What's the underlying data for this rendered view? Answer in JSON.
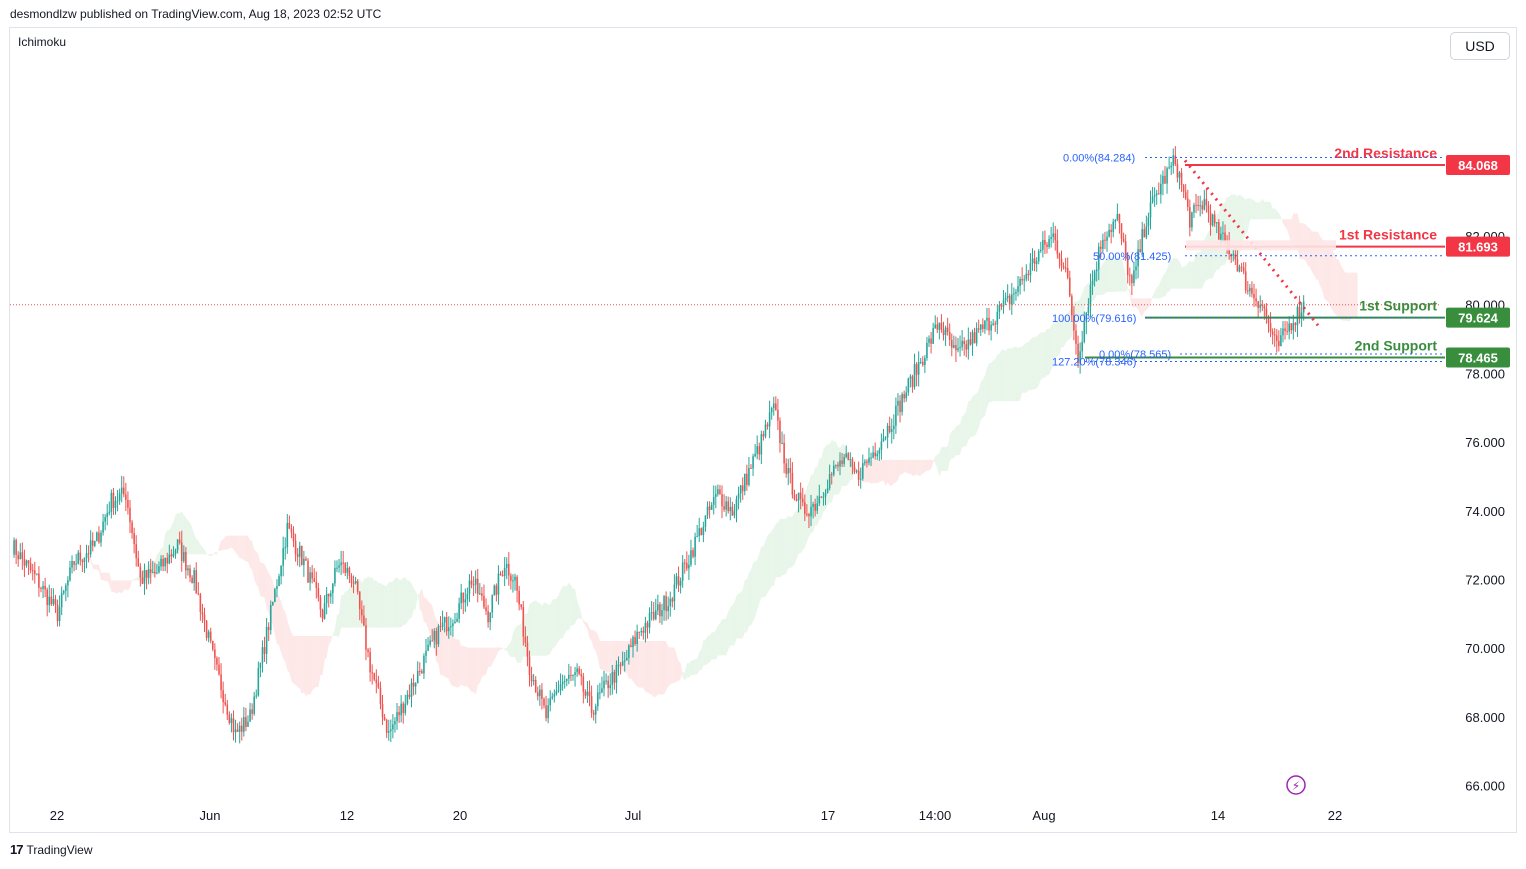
{
  "header": {
    "published": "desmondlzw published on TradingView.com, Aug 18, 2023 02:52 UTC"
  },
  "indicator": {
    "name": "Ichimoku"
  },
  "currency": {
    "label": "USD"
  },
  "footer": {
    "brand": "TradingView",
    "logo_icon": "tradingview-logo-icon"
  },
  "colors": {
    "up": "#26a69a",
    "down": "#ef5350",
    "resistance": "#f23645",
    "support": "#388e3c",
    "cloud_green": "#e8f5e9",
    "cloud_red": "#fde7e7",
    "fib": "#2962ff",
    "grid_text": "#131722"
  },
  "chart_data": {
    "type": "candlestick",
    "title": "",
    "xlabel": "",
    "ylabel": "",
    "ylim": [
      65.0,
      86.6
    ],
    "y_ticks": [
      "66.000",
      "68.000",
      "70.000",
      "72.000",
      "74.000",
      "76.000",
      "78.000",
      "80.000",
      "82.000"
    ],
    "x_ticks": [
      "22",
      "Jun",
      "12",
      "20",
      "Jul",
      "17",
      "14:00",
      "Aug",
      "14",
      "22"
    ],
    "levels": [
      {
        "name": "2nd Resistance",
        "value": 84.068,
        "label": "84.068",
        "kind": "resistance"
      },
      {
        "name": "1st Resistance",
        "value": 81.693,
        "label": "81.693",
        "kind": "resistance"
      },
      {
        "name": "1st Support",
        "value": 79.624,
        "label": "79.624",
        "kind": "support"
      },
      {
        "name": "2nd Support",
        "value": 78.465,
        "label": "78.465",
        "kind": "support"
      }
    ],
    "fib_labels": [
      {
        "text": "0.00%(84.284)",
        "value": 84.284
      },
      {
        "text": "50.00%(81.425)",
        "value": 81.425
      },
      {
        "text": "100.00%(79.616)",
        "value": 79.616
      },
      {
        "text": "0.00%(78.565)",
        "value": 78.565
      },
      {
        "text": "127.20%(78.346)",
        "value": 78.346
      }
    ],
    "current_price": 80.0,
    "series": [
      {
        "name": "",
        "keypoints": [
          [
            0,
            73.0
          ],
          [
            12,
            72.0
          ],
          [
            22,
            71.0
          ],
          [
            30,
            72.5
          ],
          [
            40,
            73.0
          ],
          [
            48,
            74.3
          ],
          [
            55,
            74.5
          ],
          [
            62,
            72.0
          ],
          [
            70,
            72.2
          ],
          [
            80,
            73.0
          ],
          [
            88,
            72.0
          ],
          [
            98,
            69.5
          ],
          [
            108,
            67.5
          ],
          [
            115,
            68.0
          ],
          [
            125,
            71.0
          ],
          [
            133,
            73.5
          ],
          [
            141,
            72.5
          ],
          [
            150,
            71.0
          ],
          [
            158,
            72.5
          ],
          [
            165,
            72.0
          ],
          [
            173,
            69.5
          ],
          [
            182,
            67.5
          ],
          [
            190,
            68.5
          ],
          [
            198,
            69.5
          ],
          [
            206,
            70.5
          ],
          [
            214,
            71.0
          ],
          [
            222,
            72.0
          ],
          [
            230,
            71.0
          ],
          [
            238,
            72.5
          ],
          [
            243,
            72.0
          ],
          [
            250,
            69.5
          ],
          [
            258,
            68.0
          ],
          [
            265,
            69.0
          ],
          [
            273,
            69.2
          ],
          [
            280,
            68.2
          ],
          [
            288,
            69.0
          ],
          [
            295,
            69.5
          ],
          [
            303,
            70.5
          ],
          [
            311,
            71.0
          ],
          [
            318,
            71.5
          ],
          [
            326,
            72.5
          ],
          [
            333,
            73.5
          ],
          [
            341,
            74.5
          ],
          [
            348,
            74.0
          ],
          [
            355,
            75.0
          ],
          [
            362,
            76.0
          ],
          [
            368,
            77.0
          ],
          [
            375,
            75.0
          ],
          [
            382,
            74.0
          ],
          [
            388,
            74.2
          ],
          [
            395,
            75.0
          ],
          [
            402,
            75.5
          ],
          [
            408,
            75.0
          ],
          [
            416,
            75.7
          ],
          [
            424,
            76.5
          ],
          [
            432,
            77.5
          ],
          [
            440,
            78.5
          ],
          [
            448,
            79.5
          ],
          [
            456,
            78.5
          ],
          [
            464,
            79.0
          ],
          [
            472,
            79.5
          ],
          [
            480,
            80.0
          ],
          [
            488,
            80.7
          ],
          [
            496,
            81.5
          ],
          [
            503,
            82.0
          ],
          [
            509,
            81.0
          ],
          [
            515,
            78.5
          ],
          [
            521,
            80.5
          ],
          [
            527,
            82.0
          ],
          [
            534,
            82.5
          ],
          [
            541,
            80.5
          ],
          [
            548,
            82.5
          ],
          [
            555,
            83.5
          ],
          [
            562,
            84.2
          ],
          [
            569,
            82.5
          ],
          [
            576,
            83.0
          ],
          [
            583,
            82.0
          ],
          [
            590,
            81.5
          ],
          [
            597,
            80.5
          ],
          [
            604,
            80.0
          ],
          [
            611,
            78.7
          ],
          [
            618,
            79.5
          ],
          [
            624,
            80.0
          ]
        ]
      }
    ]
  }
}
